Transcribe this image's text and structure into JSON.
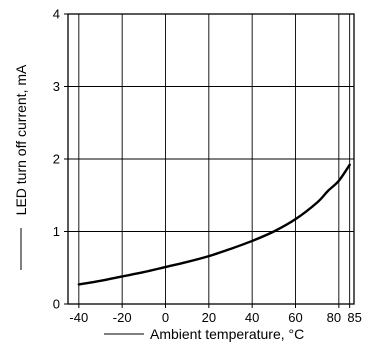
{
  "chart_data": {
    "type": "line",
    "title": "",
    "xlabel": "Ambient temperature, °C",
    "ylabel": "LED turn off current, mA",
    "xlim": [
      -45,
      87
    ],
    "ylim": [
      0,
      4
    ],
    "grid": true,
    "x_ticks": [
      -40,
      -20,
      0,
      20,
      40,
      60,
      80,
      85
    ],
    "x_tick_labels": [
      "-40",
      "-20",
      "0",
      "20",
      "40",
      "60",
      "80",
      "85"
    ],
    "y_ticks": [
      0,
      1,
      2,
      3,
      4
    ],
    "y_tick_labels": [
      "0",
      "1",
      "2",
      "3",
      "4"
    ],
    "series": [
      {
        "x": [
          -40,
          -30,
          -20,
          -10,
          0,
          10,
          20,
          30,
          40,
          50,
          60,
          70,
          75,
          80,
          85
        ],
        "y": [
          0.27,
          0.32,
          0.38,
          0.44,
          0.51,
          0.58,
          0.66,
          0.76,
          0.87,
          1.0,
          1.17,
          1.4,
          1.56,
          1.7,
          1.92
        ],
        "color": "#000000"
      }
    ]
  }
}
